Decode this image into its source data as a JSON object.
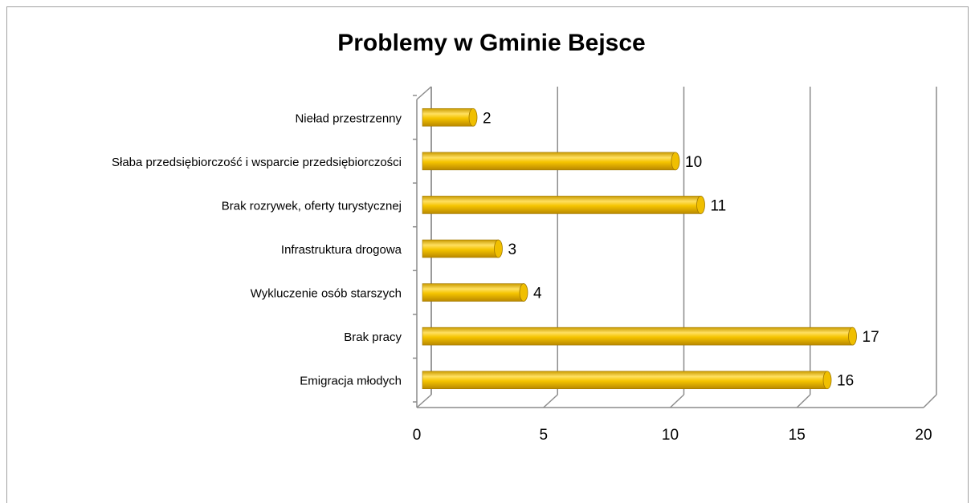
{
  "chart_data": {
    "type": "bar",
    "orientation": "horizontal",
    "title": "Problemy w Gminie Bejsce",
    "categories": [
      "Nieład przestrzenny",
      "Słaba przedsiębiorczość i wsparcie przedsiębiorczości",
      "Brak rozrywek, oferty turystycznej",
      "Infrastruktura drogowa",
      "Wykluczenie osób starszych",
      "Brak pracy",
      "Emigracja młodych"
    ],
    "values": [
      2,
      10,
      11,
      3,
      4,
      17,
      16
    ],
    "color": "#f0bf00",
    "xlim": [
      0,
      20
    ],
    "xticks": [
      0,
      5,
      10,
      15,
      20
    ],
    "grid": true
  }
}
